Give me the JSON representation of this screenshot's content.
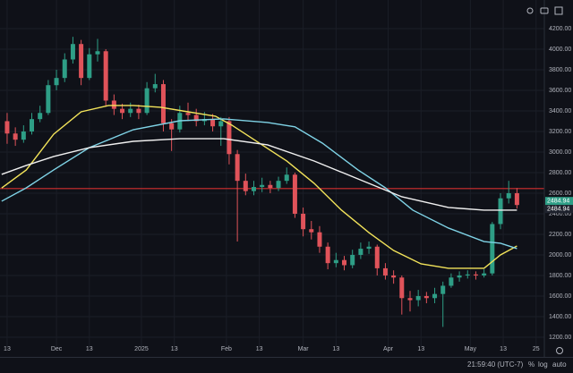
{
  "chart_data": {
    "type": "candlestick",
    "x": [
      0,
      3,
      6,
      9,
      12,
      15,
      18,
      21,
      24,
      27,
      30,
      33,
      36,
      39,
      42,
      45,
      48,
      51,
      54,
      57,
      60,
      63,
      66,
      69,
      72,
      75,
      78,
      81,
      84,
      87,
      90,
      93,
      96,
      99,
      102,
      105,
      108,
      111,
      114,
      117,
      120,
      123,
      126,
      129,
      132,
      135,
      138,
      141,
      144,
      147,
      150,
      153,
      156,
      159,
      162,
      165,
      168,
      171,
      174,
      177,
      180,
      183,
      186
    ],
    "open": [
      3300,
      3180,
      3120,
      3200,
      3320,
      3380,
      3650,
      3720,
      3900,
      4050,
      3720,
      3950,
      3980,
      3500,
      3420,
      3380,
      3420,
      3380,
      3620,
      3660,
      3280,
      3220,
      3380,
      3360,
      3300,
      3320,
      3250,
      3300,
      2980,
      2720,
      2620,
      2660,
      2680,
      2650,
      2720,
      2780,
      2400,
      2250,
      2220,
      2080,
      1920,
      1950,
      1900,
      2000,
      2060,
      2080,
      1870,
      1800,
      1780,
      1580,
      1560,
      1600,
      1580,
      1620,
      1700,
      1780,
      1800,
      1810,
      1800,
      1820,
      2300,
      2550,
      2600
    ],
    "high": [
      3380,
      3240,
      3260,
      3380,
      3450,
      3700,
      3800,
      3960,
      4120,
      4090,
      4010,
      4100,
      4000,
      3560,
      3470,
      3480,
      3460,
      3680,
      3760,
      3700,
      3320,
      3450,
      3480,
      3420,
      3390,
      3370,
      3340,
      3340,
      3020,
      2790,
      2720,
      2750,
      2720,
      2760,
      2850,
      2800,
      2460,
      2330,
      2280,
      2120,
      2020,
      1990,
      2050,
      2120,
      2130,
      2100,
      1920,
      1850,
      1800,
      1650,
      1660,
      1640,
      1680,
      1740,
      1820,
      1840,
      1850,
      1840,
      1860,
      2320,
      2600,
      2720,
      2650
    ],
    "low": [
      3080,
      3060,
      3090,
      3170,
      3290,
      3360,
      3600,
      3680,
      3860,
      3650,
      3700,
      3880,
      3440,
      3360,
      3320,
      3340,
      3320,
      3360,
      3580,
      3200,
      3010,
      3190,
      3300,
      3250,
      3260,
      3200,
      3060,
      2880,
      2130,
      2580,
      2580,
      2610,
      2600,
      2620,
      2690,
      2360,
      2180,
      2150,
      2020,
      1860,
      1880,
      1850,
      1870,
      1960,
      2010,
      1800,
      1760,
      1720,
      1420,
      1450,
      1500,
      1530,
      1530,
      1300,
      1680,
      1740,
      1770,
      1760,
      1780,
      1800,
      2250,
      2500,
      2450
    ],
    "close": [
      3180,
      3120,
      3200,
      3320,
      3380,
      3650,
      3720,
      3900,
      4050,
      3720,
      3950,
      3980,
      3500,
      3420,
      3380,
      3420,
      3380,
      3620,
      3660,
      3280,
      3220,
      3380,
      3360,
      3300,
      3320,
      3250,
      3300,
      2980,
      2720,
      2620,
      2660,
      2680,
      2650,
      2720,
      2780,
      2400,
      2250,
      2220,
      2080,
      1920,
      1950,
      1900,
      2000,
      2060,
      2080,
      1870,
      1800,
      1780,
      1580,
      1560,
      1600,
      1580,
      1620,
      1700,
      1780,
      1800,
      1810,
      1800,
      1820,
      2300,
      2550,
      2600,
      2485
    ],
    "up_color": "#2e9e86",
    "down_color": "#e0535a",
    "lines": [
      {
        "color": "#f2e35a",
        "x": [
          -2,
          7,
          17,
          27,
          37,
          46,
          56,
          66,
          76,
          82,
          92,
          102,
          112,
          122,
          132,
          141,
          151,
          161,
          174,
          180,
          186
        ],
        "values": [
          2650,
          2826,
          3174,
          3391,
          3452,
          3452,
          3435,
          3391,
          3348,
          3261,
          3087,
          2913,
          2696,
          2435,
          2217,
          2043,
          1913,
          1870,
          1870,
          2000,
          2087
        ]
      },
      {
        "color": "#7fd3e6",
        "x": [
          -2,
          7,
          17,
          30,
          46,
          63,
          79,
          95,
          105,
          115,
          128,
          138,
          148,
          161,
          174,
          180,
          186
        ],
        "values": [
          2522,
          2652,
          2826,
          3043,
          3217,
          3304,
          3322,
          3287,
          3245,
          3087,
          2826,
          2652,
          2435,
          2261,
          2130,
          2113,
          2061
        ]
      },
      {
        "color": "#f0f0f0",
        "x": [
          -2,
          7,
          17,
          30,
          46,
          63,
          79,
          95,
          112,
          128,
          144,
          161,
          174,
          186
        ],
        "values": [
          2783,
          2870,
          2957,
          3043,
          3104,
          3130,
          3130,
          3070,
          2913,
          2739,
          2565,
          2461,
          2435,
          2435
        ]
      }
    ],
    "hline": {
      "value": 2645,
      "color": "#d32f2f"
    },
    "last_price": 2484.94,
    "xlim": [
      -2.6,
      196
    ],
    "xticks": [
      {
        "value": 0,
        "label": "13"
      },
      {
        "value": 18,
        "label": "Dec"
      },
      {
        "value": 30,
        "label": "13"
      },
      {
        "value": 49,
        "label": "2025"
      },
      {
        "value": 61,
        "label": "13"
      },
      {
        "value": 80,
        "label": "Feb"
      },
      {
        "value": 92,
        "label": "13"
      },
      {
        "value": 108,
        "label": "Mar"
      },
      {
        "value": 120,
        "label": "13"
      },
      {
        "value": 139,
        "label": "Apr"
      },
      {
        "value": 151,
        "label": "13"
      },
      {
        "value": 169,
        "label": "May"
      },
      {
        "value": 181,
        "label": "13"
      },
      {
        "value": 193,
        "label": "25"
      }
    ],
    "ylim": [
      1104,
      4478
    ],
    "yticks": [
      {
        "value": 1200,
        "label": "1200.00"
      },
      {
        "value": 1400,
        "label": "1400.00"
      },
      {
        "value": 1600,
        "label": "1600.00"
      },
      {
        "value": 1800,
        "label": "1800.00"
      },
      {
        "value": 2000,
        "label": "2000.00"
      },
      {
        "value": 2200,
        "label": "2200.00"
      },
      {
        "value": 2400,
        "label": "2400.00"
      },
      {
        "value": 2600,
        "label": "2600.00"
      },
      {
        "value": 2800,
        "label": "2800.00"
      },
      {
        "value": 3000,
        "label": "3000.00"
      },
      {
        "value": 3200,
        "label": "3200.00"
      },
      {
        "value": 3400,
        "label": "3400.00"
      },
      {
        "value": 3600,
        "label": "3600.00"
      },
      {
        "value": 3800,
        "label": "3800.00"
      },
      {
        "value": 4000,
        "label": "4000.00"
      },
      {
        "value": 4200,
        "label": "4200.00"
      }
    ],
    "grid": true
  },
  "status_bar": {
    "time": "21:59:40 (UTC-7)",
    "percent": "%",
    "log": "log",
    "auto": "auto"
  }
}
